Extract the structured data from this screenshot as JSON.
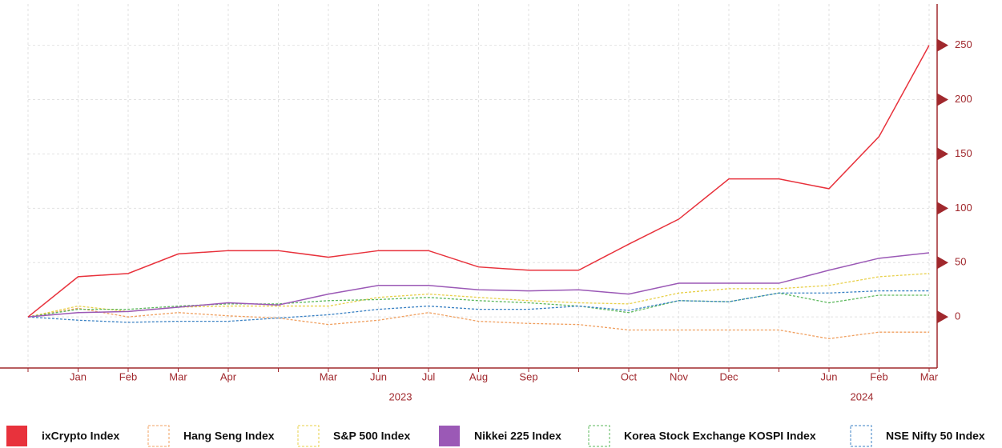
{
  "chart_data": {
    "type": "line",
    "categories": [
      null,
      "Jan",
      "Feb",
      "Mar",
      "Apr",
      null,
      "Mar",
      "Jun",
      "Jul",
      "Aug",
      "Sep",
      null,
      "Oct",
      "Nov",
      "Dec",
      null,
      "Jun",
      "Feb",
      "Mar"
    ],
    "group_labels": [
      "2023",
      "2024"
    ],
    "series": [
      {
        "name": "ixCrypto Index",
        "color": "#e8323c",
        "style": "solid",
        "values": [
          0,
          37,
          40,
          58,
          61,
          61,
          55,
          61,
          61,
          46,
          43,
          43,
          67,
          90,
          127,
          127,
          118,
          166,
          250
        ]
      },
      {
        "name": "Hang Seng Index",
        "color": "#f0a060",
        "style": "dashed",
        "values": [
          0,
          8,
          0,
          4,
          1,
          -1,
          -7,
          -3,
          4,
          -4,
          -6,
          -7,
          -12,
          -12,
          -12,
          -12,
          -20,
          -14,
          -14
        ]
      },
      {
        "name": "S&P 500 Index",
        "color": "#e8d04a",
        "style": "dashed",
        "values": [
          0,
          10,
          5,
          9,
          10,
          10,
          10,
          18,
          21,
          18,
          15,
          13,
          12,
          22,
          26,
          26,
          29,
          37,
          40
        ]
      },
      {
        "name": "Nikkei 225 Index",
        "color": "#9b59b6",
        "style": "solid",
        "values": [
          0,
          4,
          5,
          9,
          13,
          11,
          21,
          29,
          29,
          25,
          24,
          25,
          21,
          31,
          31,
          31,
          43,
          54,
          59
        ]
      },
      {
        "name": "Korea Stock Exchange KOSPI Index",
        "color": "#5cb85c",
        "style": "dashed",
        "values": [
          0,
          7,
          7,
          10,
          12,
          12,
          15,
          16,
          18,
          15,
          13,
          10,
          4,
          15,
          14,
          22,
          13,
          20,
          20
        ]
      },
      {
        "name": "NSE Nifty 50 Index",
        "color": "#3b82c4",
        "style": "dashed",
        "values": [
          0,
          -3,
          -5,
          -4,
          -4,
          -1,
          2,
          7,
          10,
          7,
          7,
          10,
          6,
          15,
          14,
          22,
          22,
          24,
          24
        ]
      }
    ],
    "ylim": [
      -47,
      288
    ],
    "yticks": [
      0,
      50,
      100,
      150,
      200,
      250
    ],
    "grid": true
  }
}
